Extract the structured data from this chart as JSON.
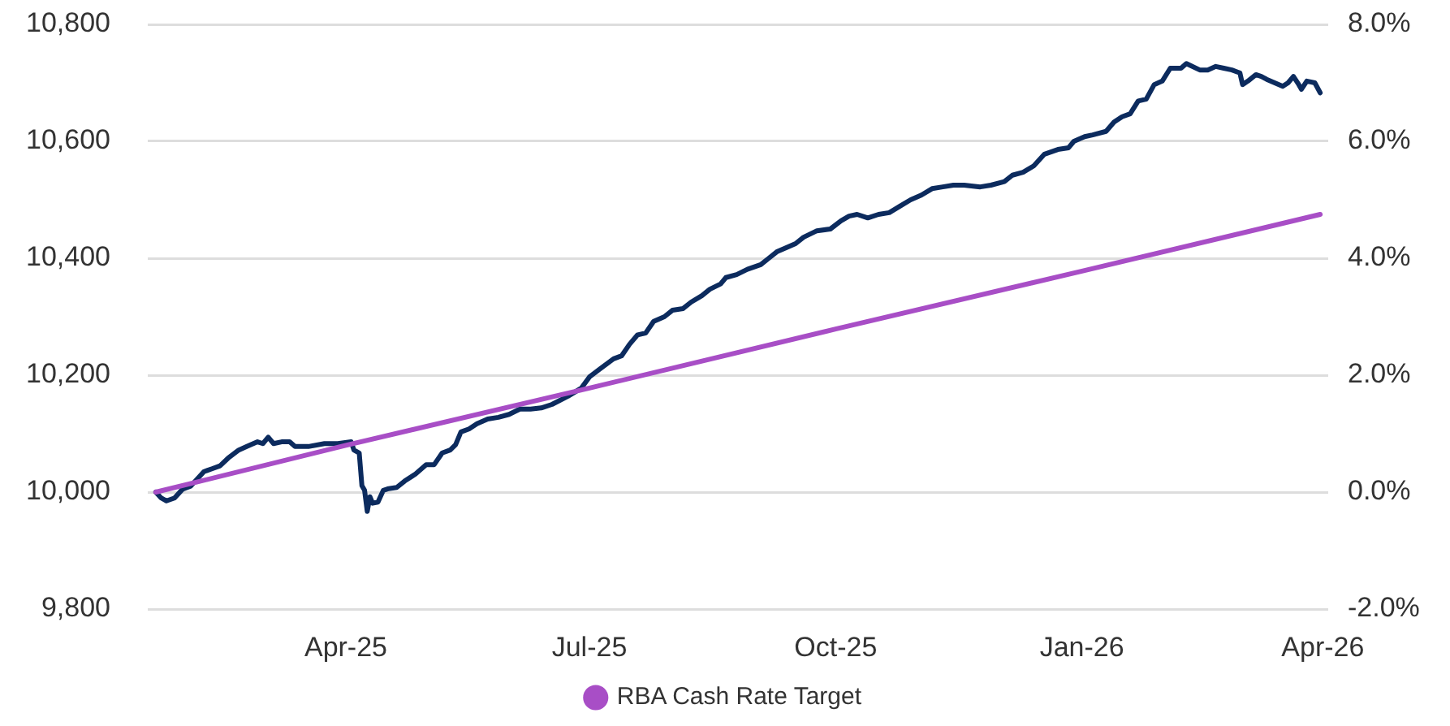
{
  "chart_data": {
    "type": "line",
    "xlim": [
      "2025-01-17",
      "2026-04-03"
    ],
    "xticks": [
      {
        "value": "2025-04-01",
        "label": "Apr-25"
      },
      {
        "value": "2025-07-01",
        "label": "Jul-25"
      },
      {
        "value": "2025-10-01",
        "label": "Oct-25"
      },
      {
        "value": "2026-01-01",
        "label": "Jan-26"
      },
      {
        "value": "2026-04-01",
        "label": "Apr-26"
      }
    ],
    "ylim": [
      9800,
      10800
    ],
    "yticks": [
      {
        "value": 9800,
        "label": "9,800"
      },
      {
        "value": 10000,
        "label": "10,000"
      },
      {
        "value": 10200,
        "label": "10,200"
      },
      {
        "value": 10400,
        "label": "10,400"
      },
      {
        "value": 10600,
        "label": "10,600"
      },
      {
        "value": 10800,
        "label": "10,800"
      }
    ],
    "y2lim": [
      -2,
      8
    ],
    "y2ticks": [
      {
        "value": -2,
        "label": "-2.0%"
      },
      {
        "value": 0,
        "label": "0.0%"
      },
      {
        "value": 2,
        "label": "2.0%"
      },
      {
        "value": 4,
        "label": "4.0%"
      },
      {
        "value": 6,
        "label": "6.0%"
      },
      {
        "value": 8,
        "label": "8.0%"
      }
    ],
    "grid": "y",
    "legend": "bottom",
    "marker": "none",
    "series": [
      {
        "color": "#0c2b5e",
        "x": [
          "2025-01-20",
          "2025-01-22",
          "2025-01-24",
          "2025-01-27",
          "2025-01-30",
          "2025-02-02",
          "2025-02-07",
          "2025-02-10",
          "2025-02-13",
          "2025-02-16",
          "2025-02-20",
          "2025-02-23",
          "2025-02-27",
          "2025-03-01",
          "2025-03-03",
          "2025-03-05",
          "2025-03-08",
          "2025-03-11",
          "2025-03-13",
          "2025-03-18",
          "2025-03-24",
          "2025-03-29",
          "2025-04-03",
          "2025-04-04",
          "2025-04-06",
          "2025-04-07",
          "2025-04-08",
          "2025-04-09",
          "2025-04-10",
          "2025-04-11",
          "2025-04-13",
          "2025-04-15",
          "2025-04-17",
          "2025-04-20",
          "2025-04-23",
          "2025-04-27",
          "2025-05-01",
          "2025-05-04",
          "2025-05-07",
          "2025-05-10",
          "2025-05-12",
          "2025-05-14",
          "2025-05-17",
          "2025-05-20",
          "2025-05-24",
          "2025-05-28",
          "2025-06-01",
          "2025-06-05",
          "2025-06-09",
          "2025-06-13",
          "2025-06-17",
          "2025-06-23",
          "2025-06-28",
          "2025-07-01",
          "2025-07-05",
          "2025-07-10",
          "2025-07-13",
          "2025-07-16",
          "2025-07-19",
          "2025-07-22",
          "2025-07-25",
          "2025-07-29",
          "2025-08-01",
          "2025-08-05",
          "2025-08-08",
          "2025-08-12",
          "2025-08-15",
          "2025-08-19",
          "2025-08-21",
          "2025-08-25",
          "2025-08-29",
          "2025-09-03",
          "2025-09-06",
          "2025-09-09",
          "2025-09-12",
          "2025-09-16",
          "2025-09-19",
          "2025-09-24",
          "2025-09-29",
          "2025-10-03",
          "2025-10-06",
          "2025-10-09",
          "2025-10-13",
          "2025-10-17",
          "2025-10-21",
          "2025-10-25",
          "2025-10-29",
          "2025-11-02",
          "2025-11-06",
          "2025-11-10",
          "2025-11-14",
          "2025-11-18",
          "2025-11-24",
          "2025-11-28",
          "2025-12-03",
          "2025-12-06",
          "2025-12-10",
          "2025-12-14",
          "2025-12-18",
          "2025-12-23",
          "2025-12-27",
          "2025-12-29",
          "2026-01-02",
          "2026-01-05",
          "2026-01-10",
          "2026-01-13",
          "2026-01-16",
          "2026-01-19",
          "2026-01-22",
          "2026-01-25",
          "2026-01-28",
          "2026-01-31",
          "2026-02-03",
          "2026-02-07",
          "2026-02-09",
          "2026-02-14",
          "2026-02-17",
          "2026-02-20",
          "2026-02-23",
          "2026-02-26",
          "2026-03-01",
          "2026-03-02",
          "2026-03-04",
          "2026-03-07",
          "2026-03-09",
          "2026-03-11",
          "2026-03-14",
          "2026-03-17",
          "2026-03-19",
          "2026-03-21",
          "2026-03-23",
          "2026-03-24",
          "2026-03-26",
          "2026-03-29",
          "2026-03-31"
        ],
        "values": [
          10000,
          9990,
          9985,
          9990,
          10005,
          10010,
          10035,
          10040,
          10045,
          10058,
          10072,
          10078,
          10086,
          10083,
          10094,
          10083,
          10086,
          10086,
          10078,
          10078,
          10083,
          10083,
          10086,
          10072,
          10067,
          10011,
          10003,
          9967,
          9992,
          9981,
          9983,
          10003,
          10006,
          10008,
          10019,
          10031,
          10047,
          10047,
          10067,
          10072,
          10081,
          10103,
          10108,
          10117,
          10125,
          10128,
          10133,
          10142,
          10142,
          10144,
          10150,
          10164,
          10178,
          10197,
          10211,
          10228,
          10233,
          10253,
          10269,
          10272,
          10292,
          10300,
          10311,
          10314,
          10325,
          10336,
          10347,
          10356,
          10367,
          10372,
          10381,
          10389,
          10400,
          10411,
          10417,
          10425,
          10436,
          10447,
          10450,
          10464,
          10472,
          10475,
          10469,
          10475,
          10478,
          10489,
          10500,
          10508,
          10519,
          10522,
          10525,
          10525,
          10522,
          10525,
          10531,
          10542,
          10547,
          10558,
          10578,
          10586,
          10589,
          10600,
          10608,
          10611,
          10617,
          10633,
          10642,
          10647,
          10669,
          10672,
          10697,
          10703,
          10725,
          10725,
          10733,
          10722,
          10722,
          10728,
          10725,
          10722,
          10717,
          10697,
          10703,
          10714,
          10711,
          10706,
          10700,
          10694,
          10700,
          10711,
          10697,
          10689,
          10703,
          10700,
          10683
        ]
      },
      {
        "name": "RBA Cash Rate Target",
        "color": "#a84ec6",
        "axis": "y2",
        "x": [
          "2025-01-20",
          "2025-04-01",
          "2025-07-01",
          "2025-10-01",
          "2026-01-01",
          "2026-03-31"
        ],
        "values": [
          0.0,
          0.8,
          1.78,
          2.79,
          3.78,
          4.75
        ]
      }
    ]
  }
}
